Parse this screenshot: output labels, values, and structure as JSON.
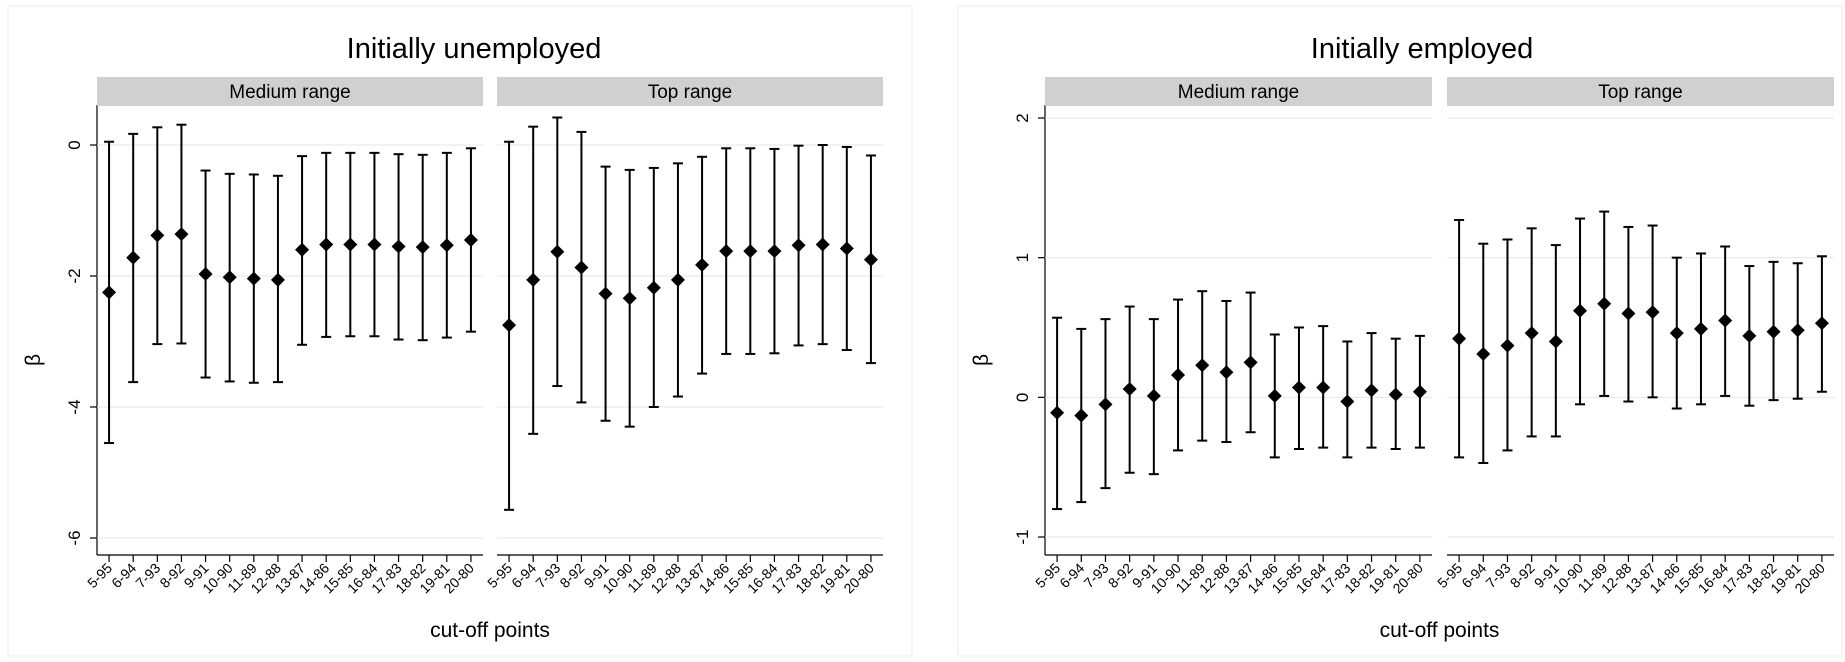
{
  "figure": {
    "xlabel": "cut-off points",
    "ylabel": "β",
    "facet_labels": [
      "Medium range",
      "Top range"
    ],
    "categories": [
      "5-95",
      "6-94",
      "7-93",
      "8-92",
      "9-91",
      "10-90",
      "11-89",
      "12-88",
      "13-87",
      "14-86",
      "15-85",
      "16-84",
      "17-83",
      "18-82",
      "19-81",
      "20-80"
    ]
  },
  "chart_data": [
    {
      "type": "scatter",
      "title": "Initially unemployed",
      "xlabel": "cut-off points",
      "ylabel": "β",
      "ylim": [
        -6,
        0.6
      ],
      "yticks": [
        -6,
        -4,
        -2,
        0
      ],
      "grid": true,
      "marker": "diamond",
      "error_bars": true,
      "categories": [
        "5-95",
        "6-94",
        "7-93",
        "8-92",
        "9-91",
        "10-90",
        "11-89",
        "12-88",
        "13-87",
        "14-86",
        "15-85",
        "16-84",
        "17-83",
        "18-82",
        "19-81",
        "20-80"
      ],
      "panels": [
        {
          "label": "Medium range",
          "values": [
            -2.25,
            -1.72,
            -1.38,
            -1.36,
            -1.97,
            -2.02,
            -2.04,
            -2.06,
            -1.6,
            -1.52,
            -1.52,
            -1.52,
            -1.55,
            -1.56,
            -1.53,
            -1.45
          ],
          "lower": [
            -4.55,
            -3.62,
            -3.04,
            -3.03,
            -3.55,
            -3.61,
            -3.63,
            -3.62,
            -3.05,
            -2.93,
            -2.92,
            -2.92,
            -2.97,
            -2.98,
            -2.94,
            -2.85
          ],
          "upper": [
            0.05,
            0.17,
            0.27,
            0.31,
            -0.39,
            -0.44,
            -0.45,
            -0.47,
            -0.17,
            -0.12,
            -0.12,
            -0.12,
            -0.14,
            -0.15,
            -0.12,
            -0.05
          ]
        },
        {
          "label": "Top range",
          "values": [
            -2.75,
            -2.06,
            -1.63,
            -1.87,
            -2.27,
            -2.34,
            -2.18,
            -2.06,
            -1.83,
            -1.62,
            -1.62,
            -1.62,
            -1.53,
            -1.52,
            -1.58,
            -1.75
          ],
          "lower": [
            -5.57,
            -4.41,
            -3.68,
            -3.93,
            -4.21,
            -4.3,
            -4.0,
            -3.84,
            -3.49,
            -3.19,
            -3.19,
            -3.18,
            -3.06,
            -3.04,
            -3.13,
            -3.33
          ],
          "upper": [
            0.05,
            0.28,
            0.42,
            0.2,
            -0.33,
            -0.38,
            -0.35,
            -0.28,
            -0.18,
            -0.05,
            -0.05,
            -0.06,
            -0.01,
            0.0,
            -0.03,
            -0.16
          ]
        }
      ]
    },
    {
      "type": "scatter",
      "title": "Initially employed",
      "xlabel": "cut-off points",
      "ylabel": "β",
      "ylim": [
        -1.05,
        2.1
      ],
      "yticks": [
        -1,
        0,
        1,
        2
      ],
      "grid": true,
      "marker": "diamond",
      "error_bars": true,
      "categories": [
        "5-95",
        "6-94",
        "7-93",
        "8-92",
        "9-91",
        "10-90",
        "11-89",
        "12-88",
        "13-87",
        "14-86",
        "15-85",
        "16-84",
        "17-83",
        "18-82",
        "19-81",
        "20-80"
      ],
      "panels": [
        {
          "label": "Medium range",
          "values": [
            -0.11,
            -0.13,
            -0.05,
            0.06,
            0.01,
            0.16,
            0.23,
            0.18,
            0.25,
            0.01,
            0.07,
            0.07,
            -0.03,
            0.05,
            0.02,
            0.04
          ],
          "lower": [
            -0.8,
            -0.75,
            -0.65,
            -0.54,
            -0.55,
            -0.38,
            -0.31,
            -0.32,
            -0.25,
            -0.43,
            -0.37,
            -0.36,
            -0.43,
            -0.36,
            -0.37,
            -0.36
          ],
          "upper": [
            0.57,
            0.49,
            0.56,
            0.65,
            0.56,
            0.7,
            0.76,
            0.69,
            0.75,
            0.45,
            0.5,
            0.51,
            0.4,
            0.46,
            0.42,
            0.44
          ]
        },
        {
          "label": "Top range",
          "values": [
            0.42,
            0.31,
            0.37,
            0.46,
            0.4,
            0.62,
            0.67,
            0.6,
            0.61,
            0.46,
            0.49,
            0.55,
            0.44,
            0.47,
            0.48,
            0.53
          ],
          "lower": [
            -0.43,
            -0.47,
            -0.38,
            -0.28,
            -0.28,
            -0.05,
            0.01,
            -0.03,
            0.0,
            -0.08,
            -0.05,
            0.01,
            -0.06,
            -0.02,
            -0.01,
            0.04
          ],
          "upper": [
            1.27,
            1.1,
            1.13,
            1.21,
            1.09,
            1.28,
            1.33,
            1.22,
            1.23,
            1.0,
            1.03,
            1.08,
            0.94,
            0.97,
            0.96,
            1.01
          ]
        }
      ]
    }
  ]
}
